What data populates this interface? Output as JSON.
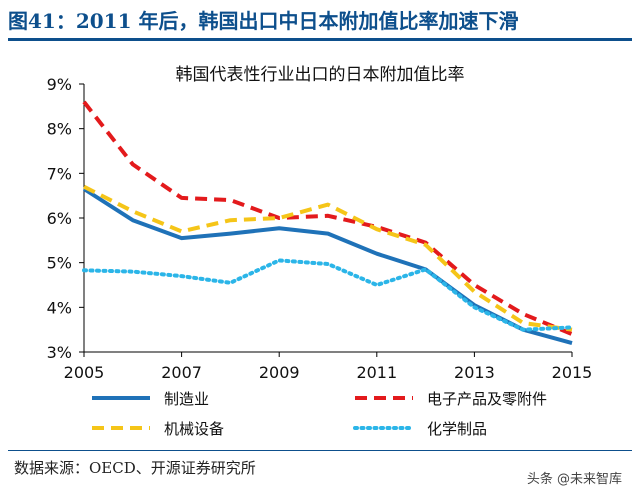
{
  "figure": {
    "title": "图41：2011 年后，韩国出口中日本附加值比率加速下滑",
    "source": "数据来源：OECD、开源证券研究所",
    "watermark": "头条 @未来智库"
  },
  "colors": {
    "title_blue": "#0d4f8c",
    "manufacturing": "#1f72b8",
    "electronics": "#e31a1c",
    "machinery": "#f5c518",
    "chemicals": "#2bb5e8"
  },
  "chart_data": {
    "type": "line",
    "title": "韩国代表性行业出口的日本附加值比率",
    "x": [
      2005,
      2006,
      2007,
      2008,
      2009,
      2010,
      2011,
      2012,
      2013,
      2014,
      2015
    ],
    "x_ticks": [
      "2005",
      "2007",
      "2009",
      "2011",
      "2013",
      "2015"
    ],
    "y_ticks": [
      "3%",
      "4%",
      "5%",
      "6%",
      "7%",
      "8%",
      "9%"
    ],
    "ylim": [
      3,
      9
    ],
    "xlim": [
      2005,
      2015
    ],
    "grid": false,
    "legend_position": "bottom",
    "series": [
      {
        "name": "制造业",
        "style": "solid",
        "color": "#1f72b8",
        "values": [
          6.65,
          5.95,
          5.55,
          5.65,
          5.77,
          5.65,
          5.2,
          4.85,
          4.05,
          3.5,
          3.2
        ]
      },
      {
        "name": "电子产品及零附件",
        "style": "dashed",
        "color": "#e31a1c",
        "values": [
          8.6,
          7.2,
          6.45,
          6.4,
          6.0,
          6.05,
          5.8,
          5.45,
          4.5,
          3.85,
          3.4
        ]
      },
      {
        "name": "机械设备",
        "style": "dashed",
        "color": "#f5c518",
        "values": [
          6.7,
          6.15,
          5.7,
          5.95,
          6.0,
          6.3,
          5.75,
          5.4,
          4.35,
          3.65,
          3.5
        ]
      },
      {
        "name": "化学制品",
        "style": "dotted",
        "color": "#2bb5e8",
        "values": [
          4.83,
          4.8,
          4.7,
          4.55,
          5.05,
          4.97,
          4.5,
          4.85,
          4.0,
          3.5,
          3.55
        ]
      }
    ]
  }
}
